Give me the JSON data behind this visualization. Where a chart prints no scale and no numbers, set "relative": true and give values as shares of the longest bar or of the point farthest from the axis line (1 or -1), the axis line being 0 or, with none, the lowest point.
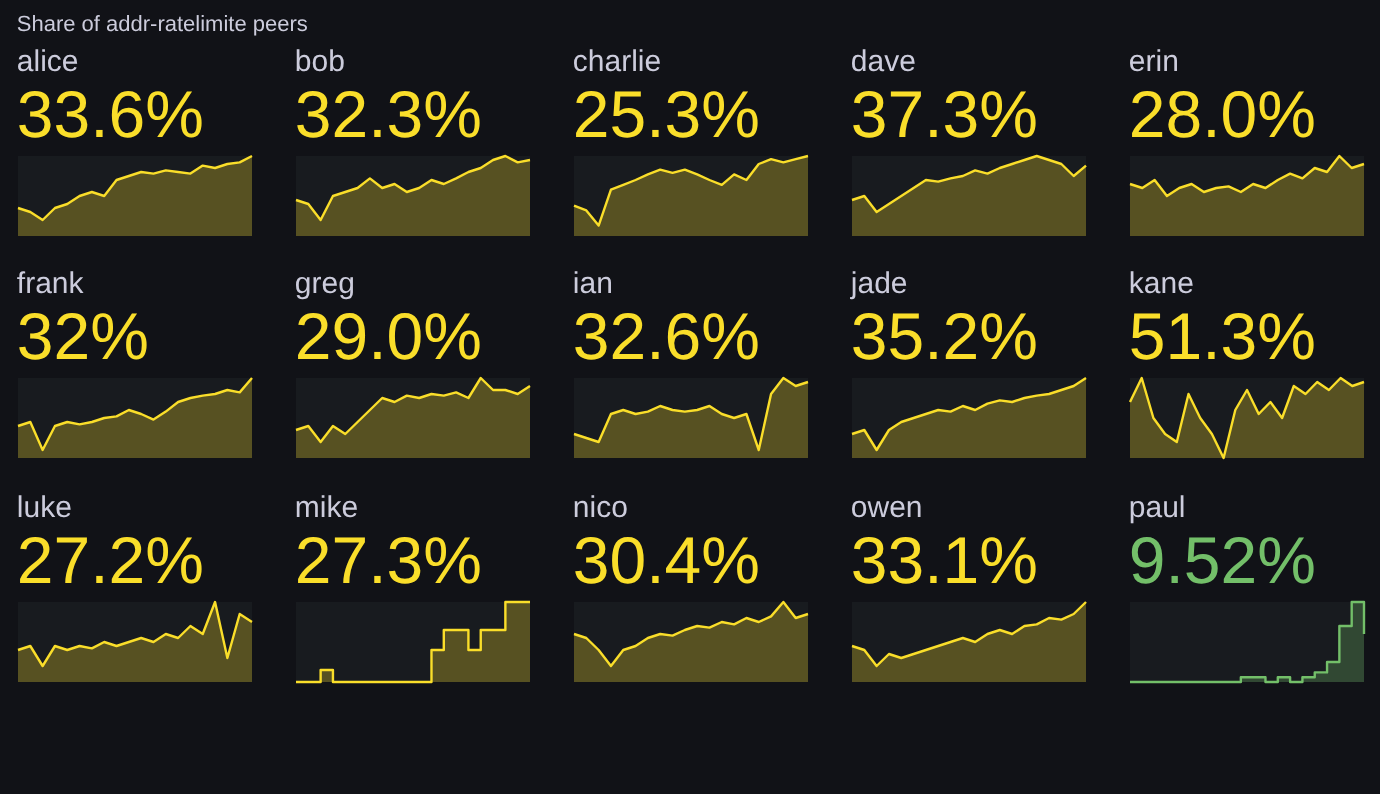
{
  "chart_data": [
    {
      "type": "other",
      "title": "Share of addr-ratelimite peers"
    },
    {
      "type": "area",
      "title": "alice",
      "annotations": [
        "33.6%"
      ],
      "relative": true,
      "categories": [
        null,
        null,
        null,
        null,
        null,
        null,
        null,
        null,
        null,
        null,
        null,
        null,
        null,
        null,
        null,
        null,
        null,
        null,
        null,
        null
      ],
      "series": [
        {
          "color": "#fade2a",
          "values": [
            0.35,
            0.3,
            0.2,
            0.35,
            0.4,
            0.5,
            0.55,
            0.5,
            0.7,
            0.75,
            0.8,
            0.78,
            0.82,
            0.8,
            0.78,
            0.88,
            0.85,
            0.9,
            0.92,
            1
          ]
        }
      ]
    },
    {
      "type": "area",
      "title": "bob",
      "annotations": [
        "32.3%"
      ],
      "relative": true,
      "categories": [
        null,
        null,
        null,
        null,
        null,
        null,
        null,
        null,
        null,
        null,
        null,
        null,
        null,
        null,
        null,
        null,
        null,
        null,
        null,
        null
      ],
      "series": [
        {
          "color": "#fade2a",
          "values": [
            0.45,
            0.4,
            0.2,
            0.5,
            0.55,
            0.6,
            0.72,
            0.6,
            0.65,
            0.55,
            0.6,
            0.7,
            0.65,
            0.72,
            0.8,
            0.85,
            0.95,
            1,
            0.92,
            0.95
          ]
        }
      ]
    },
    {
      "type": "area",
      "title": "charlie",
      "annotations": [
        "25.3%"
      ],
      "relative": true,
      "categories": [
        null,
        null,
        null,
        null,
        null,
        null,
        null,
        null,
        null,
        null,
        null,
        null,
        null,
        null,
        null,
        null,
        null,
        null,
        null,
        null
      ],
      "series": [
        {
          "color": "#fade2a",
          "values": [
            0.38,
            0.32,
            0.13,
            0.58,
            0.64,
            0.7,
            0.77,
            0.83,
            0.79,
            0.83,
            0.77,
            0.7,
            0.64,
            0.77,
            0.7,
            0.9,
            0.96,
            0.92,
            0.96,
            1
          ]
        }
      ]
    },
    {
      "type": "area",
      "title": "dave",
      "annotations": [
        "37.3%"
      ],
      "relative": true,
      "categories": [
        null,
        null,
        null,
        null,
        null,
        null,
        null,
        null,
        null,
        null,
        null,
        null,
        null,
        null,
        null,
        null,
        null,
        null,
        null,
        null
      ],
      "series": [
        {
          "color": "#fade2a",
          "values": [
            0.45,
            0.5,
            0.3,
            0.4,
            0.5,
            0.6,
            0.7,
            0.68,
            0.72,
            0.75,
            0.82,
            0.78,
            0.85,
            0.9,
            0.95,
            1,
            0.95,
            0.9,
            0.75,
            0.88
          ]
        }
      ]
    },
    {
      "type": "area",
      "title": "erin",
      "annotations": [
        "28.0%"
      ],
      "relative": true,
      "categories": [
        null,
        null,
        null,
        null,
        null,
        null,
        null,
        null,
        null,
        null,
        null,
        null,
        null,
        null,
        null,
        null,
        null,
        null,
        null,
        null
      ],
      "series": [
        {
          "color": "#fade2a",
          "values": [
            0.65,
            0.6,
            0.7,
            0.5,
            0.6,
            0.65,
            0.55,
            0.6,
            0.62,
            0.55,
            0.65,
            0.6,
            0.7,
            0.78,
            0.72,
            0.85,
            0.8,
            1,
            0.85,
            0.9
          ]
        }
      ]
    },
    {
      "type": "area",
      "title": "frank",
      "annotations": [
        "32%"
      ],
      "relative": true,
      "categories": [
        null,
        null,
        null,
        null,
        null,
        null,
        null,
        null,
        null,
        null,
        null,
        null,
        null,
        null,
        null,
        null,
        null,
        null,
        null,
        null
      ],
      "series": [
        {
          "color": "#fade2a",
          "values": [
            0.4,
            0.45,
            0.1,
            0.4,
            0.45,
            0.42,
            0.45,
            0.5,
            0.52,
            0.6,
            0.55,
            0.48,
            0.58,
            0.7,
            0.75,
            0.78,
            0.8,
            0.85,
            0.82,
            1
          ]
        }
      ]
    },
    {
      "type": "area",
      "title": "greg",
      "annotations": [
        "29.0%"
      ],
      "relative": true,
      "categories": [
        null,
        null,
        null,
        null,
        null,
        null,
        null,
        null,
        null,
        null,
        null,
        null,
        null,
        null,
        null,
        null,
        null,
        null,
        null,
        null
      ],
      "series": [
        {
          "color": "#fade2a",
          "values": [
            0.35,
            0.4,
            0.2,
            0.4,
            0.3,
            0.45,
            0.6,
            0.75,
            0.7,
            0.78,
            0.75,
            0.8,
            0.78,
            0.82,
            0.75,
            1,
            0.85,
            0.85,
            0.8,
            0.9
          ]
        }
      ]
    },
    {
      "type": "area",
      "title": "ian",
      "annotations": [
        "32.6%"
      ],
      "relative": true,
      "categories": [
        null,
        null,
        null,
        null,
        null,
        null,
        null,
        null,
        null,
        null,
        null,
        null,
        null,
        null,
        null,
        null,
        null,
        null,
        null,
        null
      ],
      "series": [
        {
          "color": "#fade2a",
          "values": [
            0.3,
            0.25,
            0.2,
            0.55,
            0.6,
            0.55,
            0.58,
            0.65,
            0.6,
            0.58,
            0.6,
            0.65,
            0.55,
            0.5,
            0.55,
            0.1,
            0.8,
            1,
            0.9,
            0.95
          ]
        }
      ]
    },
    {
      "type": "area",
      "title": "jade",
      "annotations": [
        "35.2%"
      ],
      "relative": true,
      "categories": [
        null,
        null,
        null,
        null,
        null,
        null,
        null,
        null,
        null,
        null,
        null,
        null,
        null,
        null,
        null,
        null,
        null,
        null,
        null,
        null
      ],
      "series": [
        {
          "color": "#fade2a",
          "values": [
            0.3,
            0.35,
            0.1,
            0.35,
            0.45,
            0.5,
            0.55,
            0.6,
            0.58,
            0.65,
            0.6,
            0.68,
            0.72,
            0.7,
            0.75,
            0.78,
            0.8,
            0.85,
            0.9,
            1
          ]
        }
      ]
    },
    {
      "type": "area",
      "title": "kane",
      "annotations": [
        "51.3%"
      ],
      "relative": true,
      "categories": [
        null,
        null,
        null,
        null,
        null,
        null,
        null,
        null,
        null,
        null,
        null,
        null,
        null,
        null,
        null,
        null,
        null,
        null,
        null,
        null,
        null
      ],
      "series": [
        {
          "color": "#fade2a",
          "values": [
            0.7,
            1,
            0.5,
            0.3,
            0.2,
            0.8,
            0.5,
            0.3,
            0,
            0.6,
            0.85,
            0.55,
            0.7,
            0.5,
            0.9,
            0.8,
            0.95,
            0.85,
            1,
            0.9,
            0.95
          ]
        }
      ]
    },
    {
      "type": "area",
      "title": "luke",
      "annotations": [
        "27.2%"
      ],
      "relative": true,
      "categories": [
        null,
        null,
        null,
        null,
        null,
        null,
        null,
        null,
        null,
        null,
        null,
        null,
        null,
        null,
        null,
        null,
        null,
        null,
        null,
        null
      ],
      "series": [
        {
          "color": "#fade2a",
          "values": [
            0.4,
            0.45,
            0.2,
            0.45,
            0.4,
            0.45,
            0.42,
            0.5,
            0.45,
            0.5,
            0.55,
            0.5,
            0.6,
            0.55,
            0.7,
            0.6,
            1,
            0.3,
            0.85,
            0.75
          ]
        }
      ]
    },
    {
      "type": "step",
      "title": "mike",
      "annotations": [
        "27.3%"
      ],
      "relative": true,
      "categories": [
        null,
        null,
        null,
        null,
        null,
        null,
        null,
        null,
        null,
        null,
        null,
        null,
        null,
        null,
        null,
        null,
        null,
        null,
        null,
        null
      ],
      "series": [
        {
          "color": "#fade2a",
          "values": [
            0,
            0,
            0.15,
            0,
            0,
            0,
            0,
            0,
            0,
            0,
            0,
            0.4,
            0.65,
            0.65,
            0.4,
            0.65,
            0.65,
            1,
            1,
            1
          ]
        }
      ]
    },
    {
      "type": "area",
      "title": "nico",
      "annotations": [
        "30.4%"
      ],
      "relative": true,
      "categories": [
        null,
        null,
        null,
        null,
        null,
        null,
        null,
        null,
        null,
        null,
        null,
        null,
        null,
        null,
        null,
        null,
        null,
        null,
        null,
        null
      ],
      "series": [
        {
          "color": "#fade2a",
          "values": [
            0.6,
            0.55,
            0.4,
            0.2,
            0.4,
            0.45,
            0.55,
            0.6,
            0.58,
            0.65,
            0.7,
            0.68,
            0.75,
            0.72,
            0.8,
            0.75,
            0.82,
            1,
            0.8,
            0.85
          ]
        }
      ]
    },
    {
      "type": "area",
      "title": "owen",
      "annotations": [
        "33.1%"
      ],
      "relative": true,
      "categories": [
        null,
        null,
        null,
        null,
        null,
        null,
        null,
        null,
        null,
        null,
        null,
        null,
        null,
        null,
        null,
        null,
        null,
        null,
        null,
        null
      ],
      "series": [
        {
          "color": "#fade2a",
          "values": [
            0.45,
            0.4,
            0.2,
            0.35,
            0.3,
            0.35,
            0.4,
            0.45,
            0.5,
            0.55,
            0.5,
            0.6,
            0.65,
            0.6,
            0.7,
            0.72,
            0.8,
            0.78,
            0.85,
            1
          ]
        }
      ]
    },
    {
      "type": "step",
      "title": "paul",
      "annotations": [
        "9.52%"
      ],
      "relative": true,
      "categories": [
        null,
        null,
        null,
        null,
        null,
        null,
        null,
        null,
        null,
        null,
        null,
        null,
        null,
        null,
        null,
        null,
        null,
        null,
        null,
        null
      ],
      "series": [
        {
          "color": "#73bf69",
          "values": [
            0,
            0,
            0,
            0,
            0,
            0,
            0,
            0,
            0,
            0.06,
            0.06,
            0,
            0.06,
            0,
            0.06,
            0.12,
            0.25,
            0.7,
            1,
            0.6
          ]
        }
      ]
    }
  ]
}
